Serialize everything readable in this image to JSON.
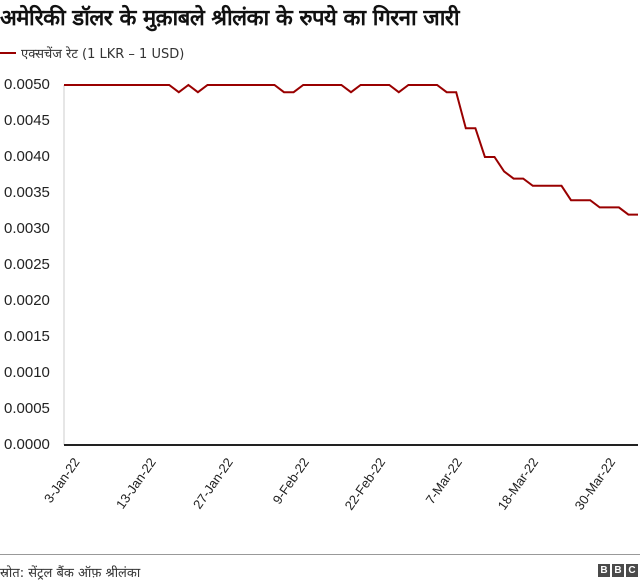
{
  "title": "अमेरिकी डॉलर के मुक़ाबले श्रीलंका के रुपये का गिरना जारी",
  "legend": {
    "label": "एक्सचेंज रेट (1 LKR – 1 USD)",
    "color": "#990000"
  },
  "source": "स्रोत: सेंट्रल बैंक ऑफ़ श्रीलंका",
  "logo": [
    "B",
    "B",
    "C"
  ],
  "y_ticks": [
    "0.0050",
    "0.0045",
    "0.0040",
    "0.0035",
    "0.0030",
    "0.0025",
    "0.0020",
    "0.0015",
    "0.0010",
    "0.0005",
    "0.0000"
  ],
  "x_ticks": [
    "3-Jan-22",
    "13-Jan-22",
    "27-Jan-22",
    "9-Feb-22",
    "22-Feb-22",
    "7-Mar-22",
    "18-Mar-22",
    "30-Mar-22"
  ],
  "chart_data": {
    "type": "line",
    "title": "अमेरिकी डॉलर के मुक़ाबले श्रीलंका के रुपये का गिरना जारी",
    "xlabel": "",
    "ylabel": "",
    "ylim": [
      0,
      0.005
    ],
    "grid": false,
    "legend_position": "top-left",
    "x_tick_labels": [
      "3-Jan-22",
      "13-Jan-22",
      "27-Jan-22",
      "9-Feb-22",
      "22-Feb-22",
      "7-Mar-22",
      "18-Mar-22",
      "30-Mar-22"
    ],
    "x_tick_indices": [
      0,
      8,
      16,
      24,
      32,
      40,
      48,
      56
    ],
    "series": [
      {
        "name": "एक्सचेंज रेट (1 LKR – 1 USD)",
        "color": "#990000",
        "values": [
          0.005,
          0.005,
          0.005,
          0.005,
          0.005,
          0.005,
          0.005,
          0.005,
          0.005,
          0.005,
          0.005,
          0.005,
          0.0049,
          0.005,
          0.0049,
          0.005,
          0.005,
          0.005,
          0.005,
          0.005,
          0.005,
          0.005,
          0.005,
          0.0049,
          0.0049,
          0.005,
          0.005,
          0.005,
          0.005,
          0.005,
          0.0049,
          0.005,
          0.005,
          0.005,
          0.005,
          0.0049,
          0.005,
          0.005,
          0.005,
          0.005,
          0.0049,
          0.0049,
          0.0044,
          0.0044,
          0.004,
          0.004,
          0.0038,
          0.0037,
          0.0037,
          0.0036,
          0.0036,
          0.0036,
          0.0036,
          0.0034,
          0.0034,
          0.0034,
          0.0033,
          0.0033,
          0.0033,
          0.0032,
          0.0032
        ]
      }
    ]
  }
}
